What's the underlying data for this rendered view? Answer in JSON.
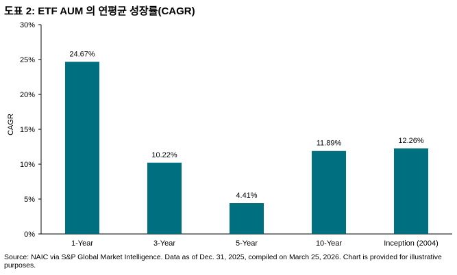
{
  "title": "도표 2: ETF AUM 의 연평균 성장률(CAGR)",
  "source": "Source: NAIC via S&P Global Market Intelligence.  Data as of Dec. 31, 2025, compiled on March 25, 2026.  Chart is provided for illustrative purposes.",
  "chart_data": {
    "type": "bar",
    "categories": [
      "1-Year",
      "3-Year",
      "5-Year",
      "10-Year",
      "Inception (2004)"
    ],
    "values": [
      24.67,
      10.22,
      4.41,
      11.89,
      12.26
    ],
    "data_labels": [
      "24.67%",
      "10.22%",
      "4.41%",
      "11.89%",
      "12.26%"
    ],
    "ylabel": "CAGR",
    "xlabel": "",
    "ylim": [
      0,
      30
    ],
    "yticks": [
      0,
      5,
      10,
      15,
      20,
      25,
      30
    ],
    "ytick_labels": [
      "0%",
      "5%",
      "10%",
      "15%",
      "20%",
      "25%",
      "30%"
    ],
    "bar_color": "#006F7F",
    "grid": false,
    "legend": "none"
  }
}
